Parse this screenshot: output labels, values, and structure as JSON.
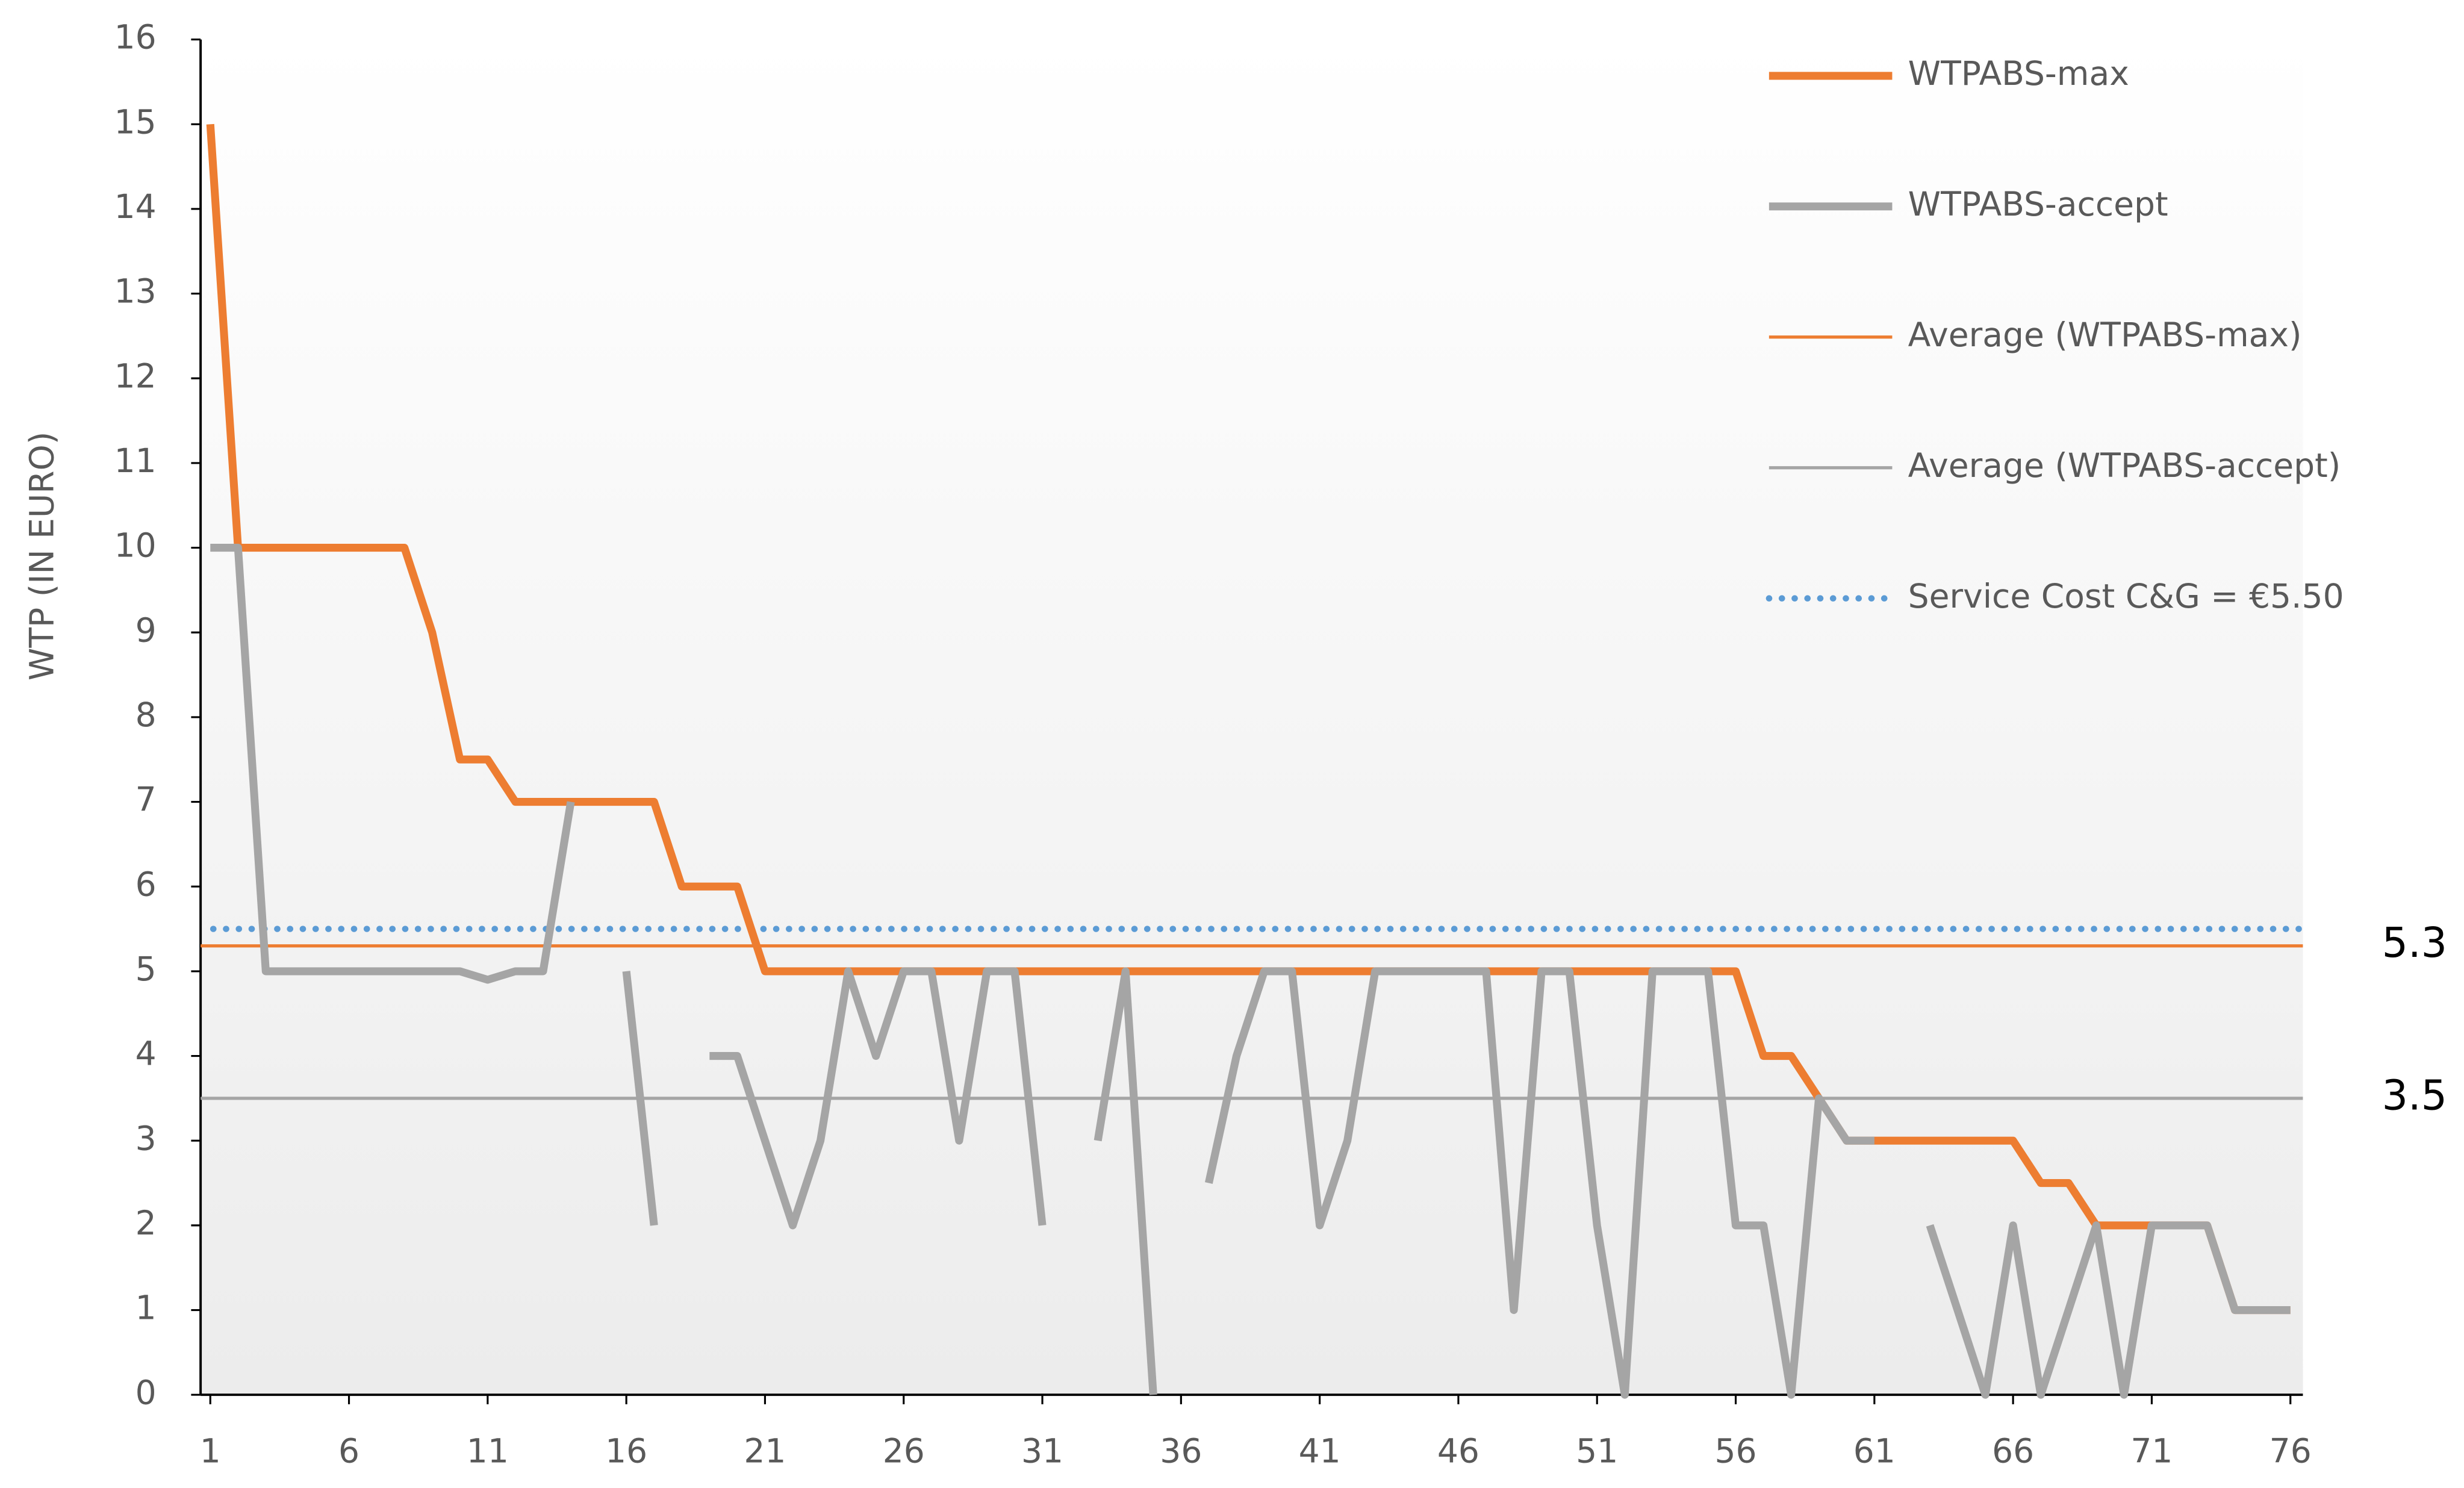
{
  "chart_data": {
    "type": "line",
    "y_label": "WTP (IN EURO)",
    "x": [
      1,
      2,
      3,
      4,
      5,
      6,
      7,
      8,
      9,
      10,
      11,
      12,
      13,
      14,
      15,
      16,
      17,
      18,
      19,
      20,
      21,
      22,
      23,
      24,
      25,
      26,
      27,
      28,
      29,
      30,
      31,
      32,
      33,
      34,
      35,
      36,
      37,
      38,
      39,
      40,
      41,
      42,
      43,
      44,
      45,
      46,
      47,
      48,
      49,
      50,
      51,
      52,
      53,
      54,
      55,
      56,
      57,
      58,
      59,
      60,
      61,
      62,
      63,
      64,
      65,
      66,
      67,
      68,
      69,
      70,
      71,
      72,
      73,
      74,
      75,
      76
    ],
    "xlim": [
      0.65,
      76.45
    ],
    "xticks": [
      1,
      6,
      11,
      16,
      21,
      26,
      31,
      36,
      41,
      46,
      51,
      56,
      61,
      66,
      71,
      76
    ],
    "ylim": [
      0,
      16
    ],
    "yticks": [
      0,
      1,
      2,
      3,
      4,
      5,
      6,
      7,
      8,
      9,
      10,
      11,
      12,
      13,
      14,
      15,
      16
    ],
    "series": [
      {
        "name": "WTPABS-max",
        "color": "#ed7d31",
        "values": [
          15,
          10,
          10,
          10,
          10,
          10,
          10,
          10,
          9,
          7.5,
          7.5,
          7,
          7,
          7,
          7,
          7,
          7,
          6,
          6,
          6,
          5,
          5,
          5,
          5,
          5,
          5,
          5,
          5,
          5,
          5,
          5,
          5,
          5,
          5,
          5,
          5,
          5,
          5,
          5,
          5,
          5,
          5,
          5,
          5,
          5,
          5,
          5,
          5,
          5,
          5,
          5,
          5,
          5,
          5,
          5,
          5,
          4,
          4,
          3.5,
          3,
          3,
          3,
          3,
          3,
          3,
          3,
          2.5,
          2.5,
          2,
          2,
          2,
          2,
          2,
          1,
          1,
          1
        ]
      },
      {
        "name": "WTPABS-accept",
        "color": "#a5a5a5",
        "values": [
          10,
          10,
          5,
          5,
          5,
          5,
          5,
          5,
          5,
          5,
          4.9,
          5,
          5,
          7,
          null,
          5,
          2,
          null,
          4,
          4,
          3,
          2,
          3,
          5,
          4,
          5,
          5,
          3,
          5,
          5,
          2,
          null,
          3,
          5,
          0,
          null,
          2.5,
          4,
          5,
          5,
          2,
          3,
          5,
          5,
          5,
          5,
          5,
          1,
          5,
          5,
          2,
          0,
          5,
          5,
          5,
          2,
          2,
          0,
          3.5,
          3,
          3,
          null,
          2,
          1,
          0,
          2,
          0,
          1,
          2,
          0,
          2,
          2,
          2,
          1,
          1,
          1
        ]
      }
    ],
    "averages": [
      {
        "name": "Average (WTPABS-max)",
        "color": "#ed7d31",
        "value": 5.3,
        "label": "5.3"
      },
      {
        "name": "Average (WTPABS-accept)",
        "color": "#a5a5a5",
        "value": 3.5,
        "label": "3.5"
      }
    ],
    "reference_line": {
      "name": "Service Cost C&G = €5.50",
      "color": "#5b9bd5",
      "value": 5.5
    }
  }
}
